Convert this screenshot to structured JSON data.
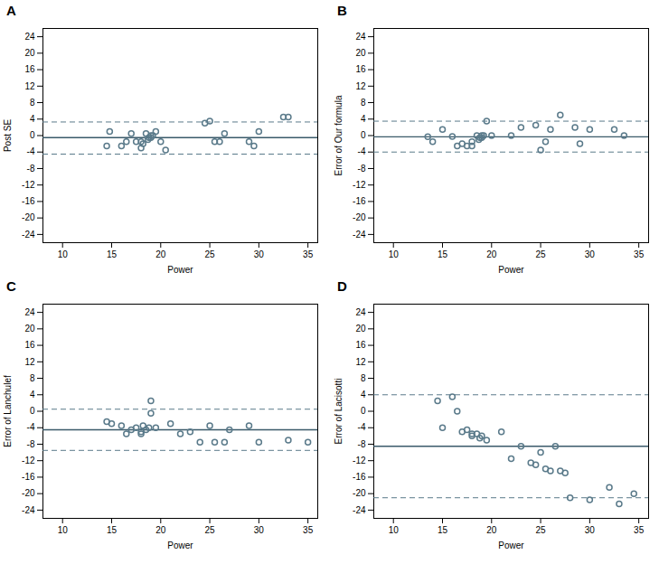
{
  "chart_data": [
    {
      "type": "scatter",
      "title": "A",
      "xlabel": "Power",
      "ylabel": "Post SE",
      "x": [
        14.5,
        14.8,
        16.0,
        16.5,
        17.0,
        17.5,
        18.0,
        18.0,
        18.2,
        18.5,
        18.7,
        18.8,
        19.0,
        19.0,
        19.2,
        19.5,
        20.0,
        20.5,
        24.5,
        25.0,
        25.5,
        26.0,
        26.5,
        29.0,
        29.5,
        30.0,
        32.5,
        33.0
      ],
      "values": [
        -2.5,
        1.0,
        -2.5,
        -1.5,
        0.5,
        -1.5,
        -1.5,
        -3.0,
        -2.0,
        0.5,
        -1.0,
        -0.5,
        0.0,
        -0.5,
        0.0,
        1.0,
        -1.5,
        -3.5,
        3.0,
        3.5,
        -1.5,
        -1.5,
        0.5,
        -1.5,
        -2.5,
        1.0,
        4.5,
        4.5
      ],
      "color": "#5a7a8a",
      "marker": "circle",
      "lines": [
        {
          "value": -0.5,
          "color": "#3a5a6a",
          "line_style": "solid"
        },
        {
          "value": 3.3,
          "color": "#5a7a8a",
          "line_style": "dashed"
        },
        {
          "value": -4.5,
          "color": "#5a7a8a",
          "line_style": "dashed"
        }
      ],
      "xlim": [
        8,
        36
      ],
      "xticks": [
        10,
        15,
        20,
        25,
        30,
        35
      ],
      "ylim": [
        -26,
        26
      ],
      "yticks": [
        -24,
        -20,
        -16,
        -12,
        -8,
        -4,
        0,
        4,
        8,
        12,
        16,
        20,
        24
      ],
      "grid": false
    },
    {
      "type": "scatter",
      "title": "B",
      "xlabel": "Power",
      "ylabel": "Error of Our formula",
      "x": [
        13.5,
        14.0,
        15.0,
        16.0,
        16.5,
        17.0,
        17.5,
        18.0,
        18.0,
        18.5,
        18.7,
        18.8,
        19.0,
        19.0,
        19.2,
        19.5,
        20.0,
        22.0,
        23.0,
        24.5,
        25.0,
        25.5,
        26.0,
        27.0,
        28.5,
        29.0,
        30.0,
        32.5,
        33.5
      ],
      "values": [
        -0.3,
        -1.5,
        1.5,
        -0.2,
        -2.5,
        -2.0,
        -2.5,
        -1.5,
        -2.5,
        0.0,
        -1.0,
        -0.5,
        0.0,
        -0.5,
        0.0,
        3.5,
        0.0,
        0.0,
        2.0,
        2.5,
        -3.5,
        -1.5,
        1.5,
        5.0,
        2.0,
        -2.0,
        1.5,
        1.5,
        0.0
      ],
      "color": "#5a7a8a",
      "marker": "circle",
      "lines": [
        {
          "value": -0.3,
          "color": "#3a5a6a",
          "line_style": "solid"
        },
        {
          "value": 3.5,
          "color": "#5a7a8a",
          "line_style": "dashed"
        },
        {
          "value": -4.0,
          "color": "#5a7a8a",
          "line_style": "dashed"
        }
      ],
      "xlim": [
        8,
        36
      ],
      "xticks": [
        10,
        15,
        20,
        25,
        30,
        35
      ],
      "ylim": [
        -26,
        26
      ],
      "yticks": [
        -24,
        -20,
        -16,
        -12,
        -8,
        -4,
        0,
        4,
        8,
        12,
        16,
        20,
        24
      ],
      "grid": false
    },
    {
      "type": "scatter",
      "title": "C",
      "xlabel": "Power",
      "ylabel": "Error of Lanchulef",
      "x": [
        14.5,
        15.0,
        16.0,
        16.5,
        17.0,
        17.5,
        18.0,
        18.0,
        18.2,
        18.5,
        18.8,
        19.0,
        19.0,
        19.5,
        21.0,
        22.0,
        23.0,
        24.0,
        25.0,
        25.5,
        26.5,
        27.0,
        29.0,
        30.0,
        33.0,
        35.0
      ],
      "values": [
        -2.5,
        -3.0,
        -3.5,
        -5.5,
        -4.5,
        -4.0,
        -5.5,
        -5.0,
        -3.5,
        -4.5,
        -4.0,
        2.5,
        -0.5,
        -4.0,
        -3.0,
        -5.5,
        -5.0,
        -7.5,
        -3.5,
        -7.5,
        -7.5,
        -4.5,
        -3.5,
        -7.5,
        -7.0,
        -7.5
      ],
      "color": "#5a7a8a",
      "marker": "circle",
      "lines": [
        {
          "value": -4.5,
          "color": "#3a5a6a",
          "line_style": "solid"
        },
        {
          "value": 0.5,
          "color": "#5a7a8a",
          "line_style": "dashed"
        },
        {
          "value": -9.5,
          "color": "#5a7a8a",
          "line_style": "dashed"
        }
      ],
      "xlim": [
        8,
        36
      ],
      "xticks": [
        10,
        15,
        20,
        25,
        30,
        35
      ],
      "ylim": [
        -26,
        26
      ],
      "yticks": [
        -24,
        -20,
        -16,
        -12,
        -8,
        -4,
        0,
        4,
        8,
        12,
        16,
        20,
        24
      ],
      "grid": false
    },
    {
      "type": "scatter",
      "title": "D",
      "xlabel": "Power",
      "ylabel": "Error of Lacisotti",
      "x": [
        14.5,
        15.0,
        16.0,
        16.5,
        17.0,
        17.5,
        18.0,
        18.0,
        18.5,
        18.8,
        19.0,
        19.5,
        21.0,
        22.0,
        23.0,
        24.0,
        24.5,
        25.0,
        25.5,
        26.0,
        26.5,
        27.0,
        27.5,
        28.0,
        30.0,
        32.0,
        33.0,
        34.5
      ],
      "values": [
        2.5,
        -4.0,
        3.5,
        0.0,
        -5.0,
        -4.5,
        -6.0,
        -5.5,
        -5.5,
        -6.5,
        -6.0,
        -7.0,
        -5.0,
        -11.5,
        -8.5,
        -12.5,
        -13.0,
        -10.0,
        -14.0,
        -14.5,
        -8.5,
        -14.5,
        -15.0,
        -21.0,
        -21.5,
        -18.5,
        -22.5,
        -20.0
      ],
      "color": "#5a7a8a",
      "marker": "circle",
      "lines": [
        {
          "value": -8.5,
          "color": "#3a5a6a",
          "line_style": "solid"
        },
        {
          "value": 4.0,
          "color": "#5a7a8a",
          "line_style": "dashed"
        },
        {
          "value": -21.0,
          "color": "#5a7a8a",
          "line_style": "dashed"
        }
      ],
      "xlim": [
        8,
        36
      ],
      "xticks": [
        10,
        15,
        20,
        25,
        30,
        35
      ],
      "ylim": [
        -26,
        26
      ],
      "yticks": [
        -24,
        -20,
        -16,
        -12,
        -8,
        -4,
        0,
        4,
        8,
        12,
        16,
        20,
        24
      ],
      "grid": false
    }
  ]
}
